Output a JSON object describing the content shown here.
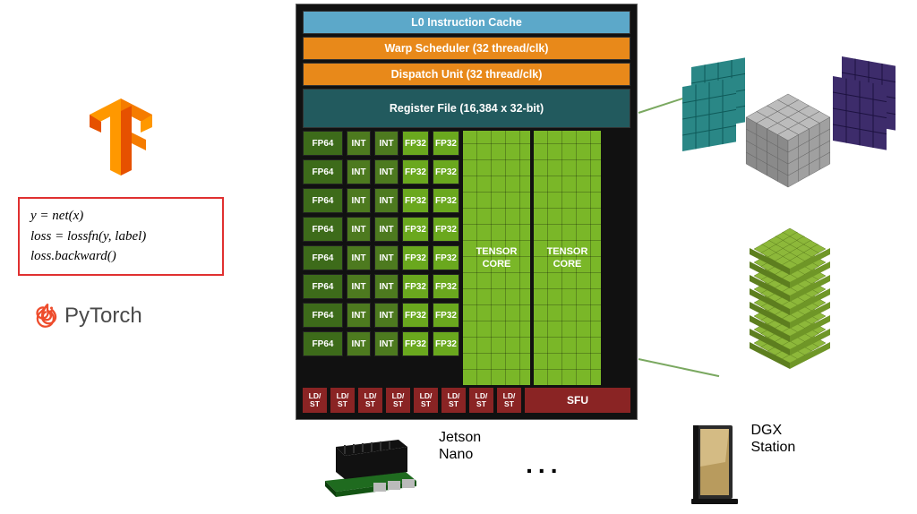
{
  "code": {
    "line1": "y = net(x)",
    "line2": "loss = lossfn(y, label)",
    "line3": "loss.backward()",
    "border_color": "#e03030"
  },
  "pytorch": {
    "label": "PyTorch",
    "flame_color": "#ee4c2c"
  },
  "tensorflow": {
    "color1": "#ff9800",
    "color2": "#f57c00",
    "color3": "#e65100"
  },
  "sm": {
    "l0": {
      "label": "L0 Instruction Cache",
      "bg": "#5ca8c9"
    },
    "warp": {
      "label": "Warp Scheduler (32 thread/clk)",
      "bg": "#e8891a"
    },
    "dispatch": {
      "label": "Dispatch Unit (32 thread/clk)",
      "bg": "#e8891a"
    },
    "regfile": {
      "label": "Register File (16,384 x 32-bit)",
      "bg": "#225a5e"
    },
    "fp64": {
      "bg": "#3d6b1a",
      "label": "FP64"
    },
    "int": {
      "bg": "#4d7a1f",
      "label": "INT"
    },
    "fp32": {
      "bg": "#6aa81e",
      "label": "FP32"
    },
    "tensor": {
      "bg": "#7ab728",
      "label": "TENSOR\nCORE"
    },
    "ldst": {
      "bg": "#8a2424",
      "label": "LD/\nST"
    },
    "sfu": {
      "bg": "#8a2424",
      "label": "SFU"
    },
    "rows": 8,
    "ldst_count": 8
  },
  "hardware": {
    "jetson": "Jetson\nNano",
    "dgx": "DGX\nStation",
    "dots": "..."
  },
  "tensor_cube": {
    "panel_teal": "#2a8786",
    "panel_purple": "#3d2c6b",
    "gray_cube": "#9a9a9a",
    "green_stack": "#8db83a"
  }
}
